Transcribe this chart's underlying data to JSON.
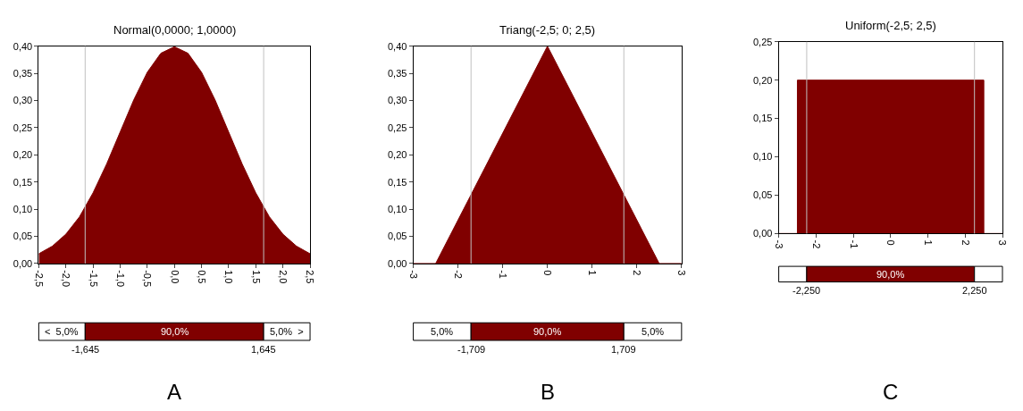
{
  "chart_data": [
    {
      "type": "area",
      "title": "Normal(0,0000; 1,0000)",
      "color": "#800000",
      "x": [
        -2.5,
        -2.25,
        -2,
        -1.75,
        -1.5,
        -1.25,
        -1,
        -0.75,
        -0.5,
        -0.25,
        0,
        0.25,
        0.5,
        0.75,
        1,
        1.25,
        1.5,
        1.75,
        2,
        2.25,
        2.5
      ],
      "values": [
        0.018,
        0.032,
        0.054,
        0.086,
        0.13,
        0.183,
        0.242,
        0.301,
        0.352,
        0.387,
        0.399,
        0.387,
        0.352,
        0.301,
        0.242,
        0.183,
        0.13,
        0.086,
        0.054,
        0.032,
        0.018
      ],
      "xlim": [
        -2.5,
        2.5
      ],
      "xticks": [
        {
          "value": -2.5,
          "label": "-2,5"
        },
        {
          "value": -2,
          "label": "-2,0"
        },
        {
          "value": -1.5,
          "label": "-1,5"
        },
        {
          "value": -1,
          "label": "-1,0"
        },
        {
          "value": -0.5,
          "label": "-0,5"
        },
        {
          "value": 0,
          "label": "0,0"
        },
        {
          "value": 0.5,
          "label": "0,5"
        },
        {
          "value": 1,
          "label": "1,0"
        },
        {
          "value": 1.5,
          "label": "1,5"
        },
        {
          "value": 2,
          "label": "2,0"
        },
        {
          "value": 2.5,
          "label": "2,5"
        }
      ],
      "ylim": [
        0,
        0.4
      ],
      "yticks": [
        {
          "value": 0,
          "label": "0,00"
        },
        {
          "value": 0.05,
          "label": "0,05"
        },
        {
          "value": 0.1,
          "label": "0,10"
        },
        {
          "value": 0.15,
          "label": "0,15"
        },
        {
          "value": 0.2,
          "label": "0,20"
        },
        {
          "value": 0.25,
          "label": "0,25"
        },
        {
          "value": 0.3,
          "label": "0,30"
        },
        {
          "value": 0.35,
          "label": "0,35"
        },
        {
          "value": 0.4,
          "label": "0,40"
        }
      ],
      "ref_lines": [
        {
          "axis": "x",
          "value": -1.645,
          "color": "#c0c0c0"
        },
        {
          "axis": "x",
          "value": 1.645,
          "color": "#c0c0c0"
        }
      ],
      "annotations": [
        "A"
      ]
    },
    {
      "type": "other",
      "annotations": [
        "<  5,0%",
        "90,0%",
        "5,0%  >",
        "-1,645",
        "1,645"
      ]
    },
    {
      "type": "area",
      "title": "Triang(-2,5; 0; 2,5)",
      "color": "#800000",
      "x": [
        -3,
        -2.5,
        0,
        2.5,
        3
      ],
      "values": [
        0,
        0,
        0.4,
        0,
        0
      ],
      "xlim": [
        -3,
        3
      ],
      "xticks": [
        -3,
        -2,
        -1,
        0,
        1,
        2,
        3
      ],
      "ylim": [
        0,
        0.4
      ],
      "yticks": [
        {
          "value": 0,
          "label": "0,00"
        },
        {
          "value": 0.05,
          "label": "0,05"
        },
        {
          "value": 0.1,
          "label": "0,10"
        },
        {
          "value": 0.15,
          "label": "0,15"
        },
        {
          "value": 0.2,
          "label": "0,20"
        },
        {
          "value": 0.25,
          "label": "0,25"
        },
        {
          "value": 0.3,
          "label": "0,30"
        },
        {
          "value": 0.35,
          "label": "0,35"
        },
        {
          "value": 0.4,
          "label": "0,40"
        }
      ],
      "ref_lines": [
        {
          "axis": "x",
          "value": -1.709,
          "color": "#c0c0c0"
        },
        {
          "axis": "x",
          "value": 1.709,
          "color": "#c0c0c0"
        }
      ],
      "annotations": [
        "B"
      ]
    },
    {
      "type": "other",
      "annotations": [
        "5,0%",
        "90,0%",
        "5,0%",
        "-1,709",
        "1,709"
      ]
    },
    {
      "type": "area",
      "title": "Uniform(-2,5; 2,5)",
      "color": "#800000",
      "x": [
        -3,
        -2.5,
        -2.5,
        2.5,
        2.5,
        3
      ],
      "values": [
        0,
        0,
        0.2,
        0.2,
        0,
        0
      ],
      "xlim": [
        -3,
        3
      ],
      "xticks": [
        -3,
        -2,
        -1,
        0,
        1,
        2,
        3
      ],
      "ylim": [
        0,
        0.25
      ],
      "yticks": [
        {
          "value": 0,
          "label": "0,00"
        },
        {
          "value": 0.05,
          "label": "0,05"
        },
        {
          "value": 0.1,
          "label": "0,10"
        },
        {
          "value": 0.15,
          "label": "0,15"
        },
        {
          "value": 0.2,
          "label": "0,20"
        },
        {
          "value": 0.25,
          "label": "0,25"
        }
      ],
      "ref_lines": [
        {
          "axis": "x",
          "value": -2.25,
          "color": "#c0c0c0"
        },
        {
          "axis": "x",
          "value": 2.25,
          "color": "#c0c0c0"
        }
      ],
      "annotations": [
        "C"
      ]
    },
    {
      "type": "other",
      "annotations": [
        "90,0%",
        "-2,250",
        "2,250"
      ]
    }
  ]
}
